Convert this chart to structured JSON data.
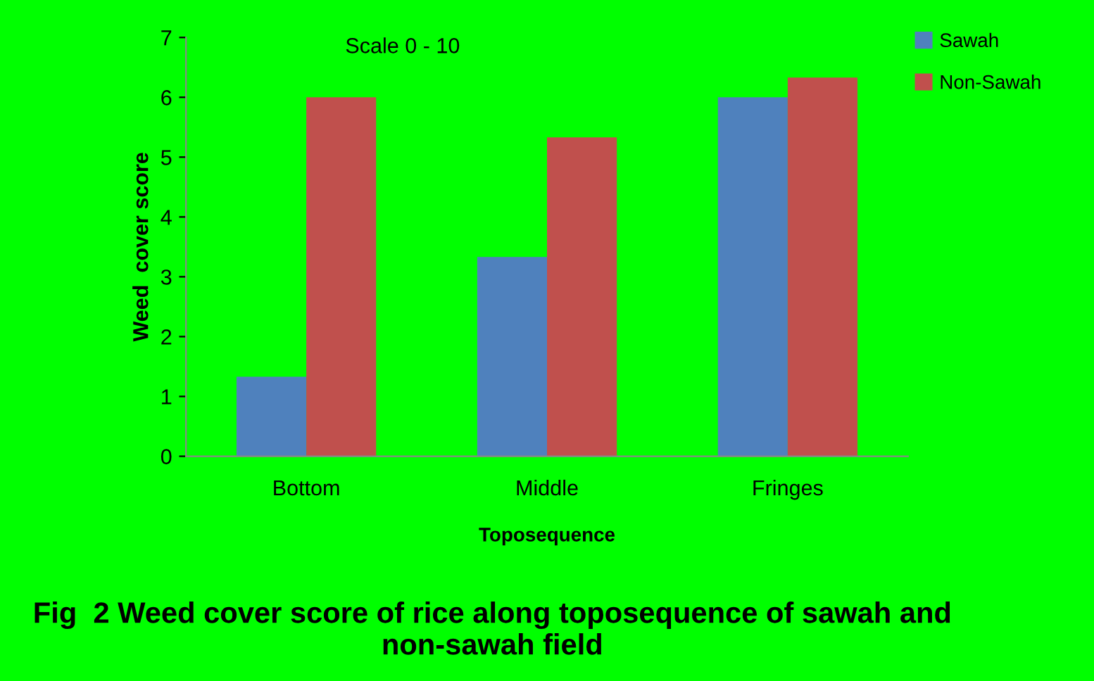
{
  "chart_data": {
    "type": "bar",
    "title": "Fig  2 Weed cover score of rice along toposequence of sawah and non-sawah field",
    "subtitle": "Scale 0 - 10",
    "xlabel": "Toposequence",
    "ylabel": "Weed  cover score",
    "categories": [
      "Bottom",
      "Middle",
      "Fringes"
    ],
    "series": [
      {
        "name": "Sawah",
        "color": "#4f81bd",
        "values": [
          1.33,
          3.33,
          6.0
        ]
      },
      {
        "name": "Non-Sawah",
        "color": "#c0504d",
        "values": [
          6.0,
          5.33,
          6.33
        ]
      }
    ],
    "ylim": [
      0,
      7
    ],
    "yticks": [
      0,
      1,
      2,
      3,
      4,
      5,
      6,
      7
    ],
    "grid": false,
    "legend": "top right"
  }
}
